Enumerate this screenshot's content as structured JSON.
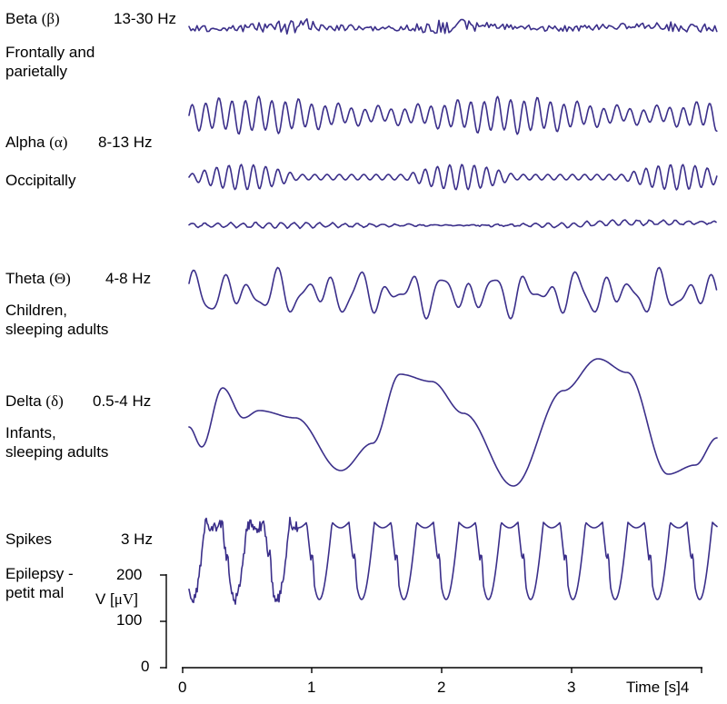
{
  "colors": {
    "trace": "#3b2f8a",
    "text": "#000000",
    "background": "#ffffff"
  },
  "rhythms": [
    {
      "id": "beta",
      "name": "Beta ",
      "symbol": "(β)",
      "freq": "13-30 Hz",
      "location": "Frontally and\nparietally",
      "traces": [
        "beta-1"
      ]
    },
    {
      "id": "alpha",
      "name": "Alpha ",
      "symbol": "(α)",
      "freq": "8-13 Hz",
      "location": "Occipitally",
      "traces": [
        "alpha-1",
        "alpha-2",
        "alpha-3"
      ]
    },
    {
      "id": "theta",
      "name": "Theta ",
      "symbol": "(Θ)",
      "freq": "4-8 Hz",
      "location": "Children,\nsleeping adults",
      "traces": [
        "theta-1"
      ]
    },
    {
      "id": "delta",
      "name": "Delta ",
      "symbol": "(δ)",
      "freq": "0.5-4 Hz",
      "location": "Infants,\nsleeping adults",
      "traces": [
        "delta-1"
      ]
    },
    {
      "id": "spikes",
      "name": "Spikes",
      "symbol": "",
      "freq": "3 Hz",
      "location": "Epilepsy -\npetit mal",
      "traces": [
        "spikes-1"
      ]
    }
  ],
  "axes": {
    "y_label_prefix": "V [",
    "y_label_unit": "μV",
    "y_label_suffix": "]",
    "y_ticks": [
      "200",
      "100",
      "0"
    ],
    "x_ticks": [
      "0",
      "1",
      "2",
      "3"
    ],
    "x_label": "Time [s]",
    "x_last_tick": "4",
    "x_range": [
      0,
      4
    ],
    "y_range": [
      0,
      200
    ]
  }
}
